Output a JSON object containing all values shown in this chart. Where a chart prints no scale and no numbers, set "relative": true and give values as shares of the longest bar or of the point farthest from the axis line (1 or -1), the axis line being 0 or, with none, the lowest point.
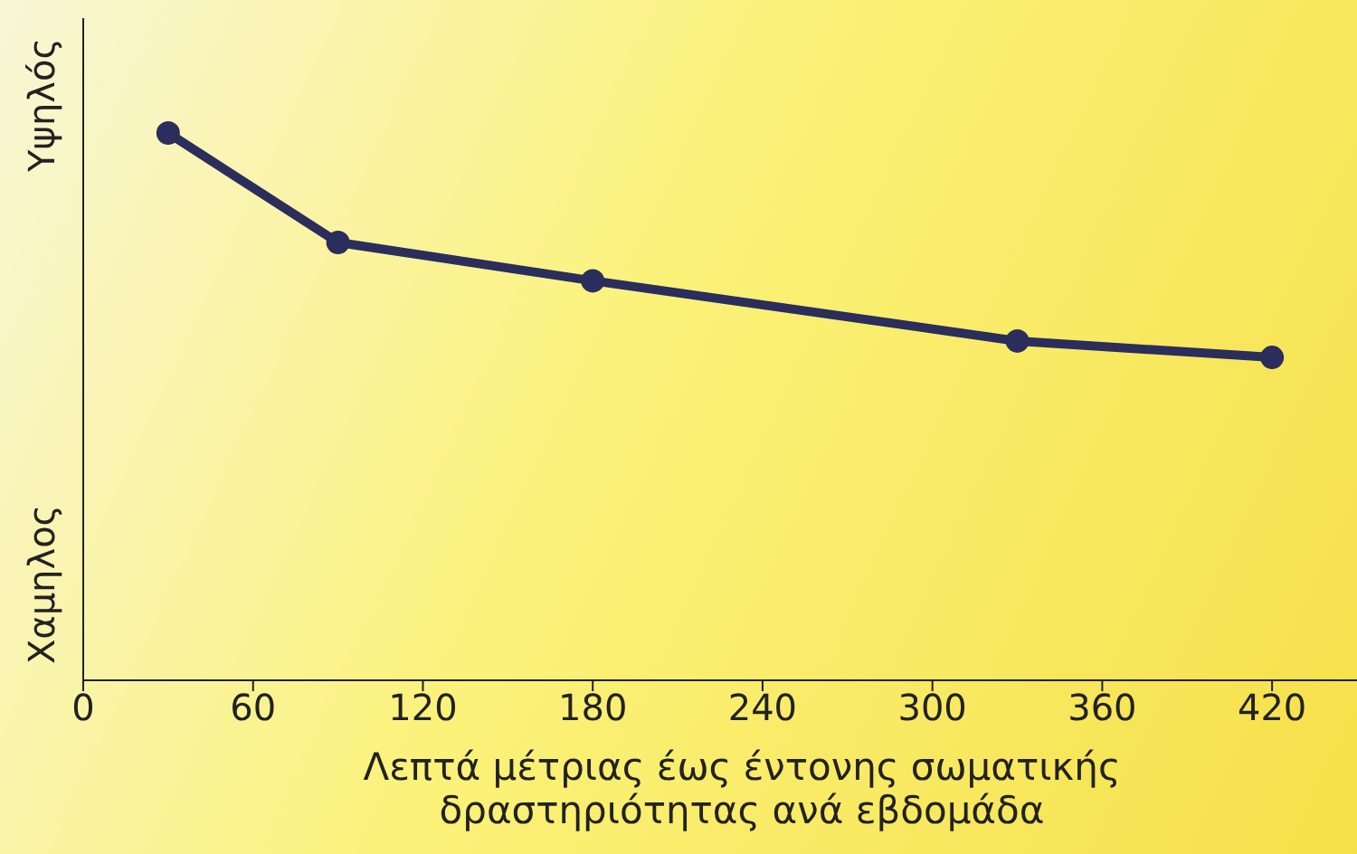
{
  "chart_data": {
    "type": "line",
    "xlabel": "Λεπτά μέτριας έως έντονης σωματικής δραστηριότητας ανά εβδομάδα",
    "annotations": [
      "Υψηλός",
      "Χαμηλος"
    ],
    "relative": true,
    "x": [
      30,
      90,
      180,
      330,
      420
    ],
    "xlim": [
      0,
      450
    ],
    "xticks": [
      0,
      60,
      120,
      180,
      240,
      300,
      360,
      420
    ],
    "series": [
      {
        "color": "#2b2d5c",
        "values": [
          1,
          0.8,
          0.73,
          0.62,
          0.59
        ]
      }
    ],
    "marker": "circle",
    "line_style": "solid",
    "grid": false,
    "legend": false
  }
}
